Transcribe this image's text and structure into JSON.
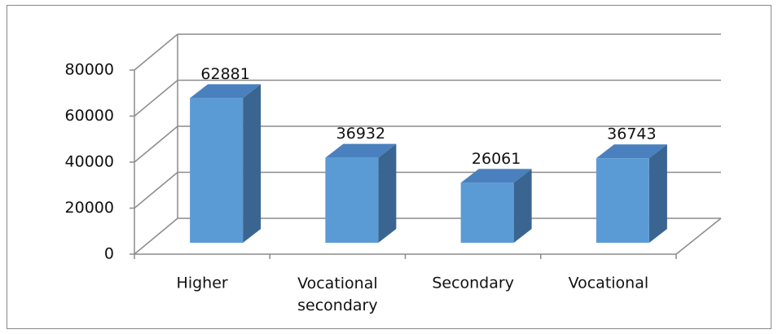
{
  "chart_data": {
    "type": "bar3d",
    "categories": [
      "Higher",
      "Vocational secondary",
      "Secondary",
      "Vocational"
    ],
    "values": [
      62881,
      36932,
      26061,
      36743
    ],
    "color": "#5b9bd5",
    "ylim": [
      0,
      80000
    ],
    "yticks": [
      0,
      20000,
      40000,
      60000,
      80000
    ],
    "grid": true
  }
}
